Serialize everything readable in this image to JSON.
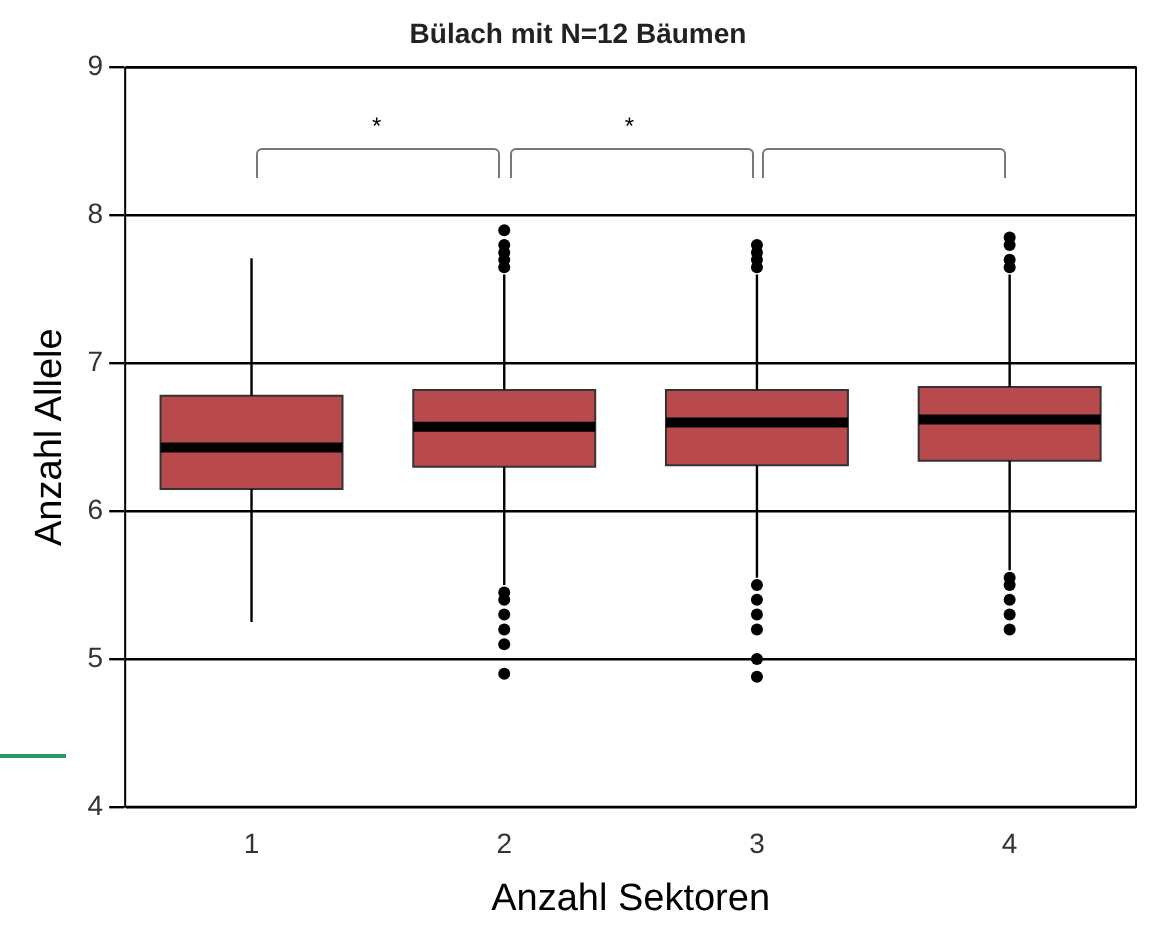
{
  "chart_data": {
    "type": "box",
    "title": "Bülach mit N=12 Bäumen",
    "xlabel": "Anzahl Sektoren",
    "ylabel": "Anzahl Allele",
    "categories": [
      "1",
      "2",
      "3",
      "4"
    ],
    "color": "#b84a4e",
    "boxes": [
      {
        "low": 5.25,
        "q1": 6.15,
        "median": 6.43,
        "q3": 6.78,
        "high": 7.71
      },
      {
        "low": 5.5,
        "q1": 6.3,
        "median": 6.57,
        "q3": 6.82,
        "high": 7.6,
        "outliers": [
          7.65,
          7.7,
          7.75,
          7.8,
          7.9,
          5.45,
          5.4,
          5.3,
          5.2,
          5.1,
          4.9
        ]
      },
      {
        "low": 5.55,
        "q1": 6.31,
        "median": 6.6,
        "q3": 6.82,
        "high": 7.6,
        "outliers": [
          7.65,
          7.7,
          7.75,
          7.8,
          5.5,
          5.4,
          5.3,
          5.2,
          5.0,
          4.88
        ]
      },
      {
        "low": 5.6,
        "q1": 6.34,
        "median": 6.62,
        "q3": 6.84,
        "high": 7.6,
        "outliers": [
          7.65,
          7.7,
          7.8,
          7.85,
          5.55,
          5.5,
          5.4,
          5.3,
          5.2
        ]
      }
    ],
    "ylim": [
      4,
      9
    ],
    "yticks": [
      4,
      5,
      6,
      7,
      8,
      9
    ],
    "grid": "y",
    "annotations": [
      "*",
      "*"
    ]
  }
}
